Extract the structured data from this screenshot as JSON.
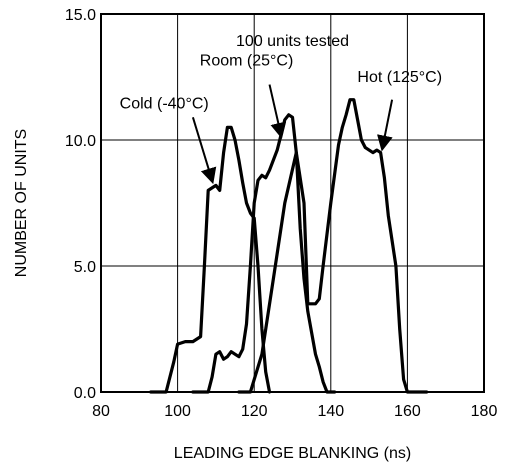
{
  "chart_data": {
    "type": "line",
    "title": "",
    "xlabel": "LEADING EDGE BLANKING (ns)",
    "ylabel": "NUMBER OF UNITS",
    "xlim": [
      80,
      180
    ],
    "ylim": [
      0,
      15
    ],
    "x_ticks": [
      "80",
      "100",
      "120",
      "140",
      "160",
      "180"
    ],
    "y_ticks": [
      "0.0",
      "5.0",
      "10.0",
      "15.0"
    ],
    "grid": true,
    "annotations": [
      {
        "text": "100 units tested"
      }
    ],
    "series": [
      {
        "name": "Cold (-40°C)",
        "points": [
          [
            93,
            0
          ],
          [
            97,
            0
          ],
          [
            99,
            1.2
          ],
          [
            100,
            1.9
          ],
          [
            102,
            2
          ],
          [
            104,
            2
          ],
          [
            106,
            2.2
          ],
          [
            107,
            5
          ],
          [
            108,
            8
          ],
          [
            110,
            8.2
          ],
          [
            111,
            8
          ],
          [
            112,
            9.5
          ],
          [
            113,
            10.5
          ],
          [
            114,
            10.5
          ],
          [
            115,
            10
          ],
          [
            116,
            9.2
          ],
          [
            117,
            8.3
          ],
          [
            118,
            7.5
          ],
          [
            119,
            7.1
          ],
          [
            120,
            6.9
          ],
          [
            121,
            5
          ],
          [
            122,
            2.5
          ],
          [
            123,
            0.8
          ],
          [
            124,
            0
          ]
        ]
      },
      {
        "name": "Room (25°C)",
        "points": [
          [
            104,
            0
          ],
          [
            108,
            0
          ],
          [
            109,
            0.6
          ],
          [
            110,
            1.5
          ],
          [
            111,
            1.6
          ],
          [
            112,
            1.3
          ],
          [
            113,
            1.4
          ],
          [
            114,
            1.6
          ],
          [
            115,
            1.5
          ],
          [
            116,
            1.4
          ],
          [
            117,
            1.7
          ],
          [
            118,
            2.7
          ],
          [
            119,
            5
          ],
          [
            120,
            7.5
          ],
          [
            121,
            8.4
          ],
          [
            122,
            8.6
          ],
          [
            123,
            8.5
          ],
          [
            124,
            8.8
          ],
          [
            126,
            9.6
          ],
          [
            127,
            10.2
          ],
          [
            128,
            10.8
          ],
          [
            129,
            11
          ],
          [
            130,
            10.9
          ],
          [
            131,
            9.5
          ],
          [
            132,
            6.5
          ],
          [
            133,
            4.5
          ],
          [
            134,
            3.2
          ],
          [
            136,
            1.5
          ],
          [
            137,
            1
          ],
          [
            138,
            0.4
          ],
          [
            139,
            0
          ],
          [
            141,
            0
          ]
        ]
      },
      {
        "name": "Hot (125°C)",
        "points": [
          [
            116,
            0
          ],
          [
            119,
            0
          ],
          [
            122,
            1.5
          ],
          [
            125,
            4.5
          ],
          [
            128,
            7.5
          ],
          [
            131,
            9.5
          ],
          [
            133,
            7.5
          ],
          [
            134,
            3.5
          ],
          [
            136,
            3.5
          ],
          [
            137,
            3.7
          ],
          [
            138,
            5
          ],
          [
            140,
            7.5
          ],
          [
            142,
            9.8
          ],
          [
            143,
            10.5
          ],
          [
            144,
            11
          ],
          [
            145,
            11.6
          ],
          [
            146,
            11.6
          ],
          [
            147,
            10.8
          ],
          [
            148,
            10
          ],
          [
            149,
            9.7
          ],
          [
            150,
            9.6
          ],
          [
            151,
            9.5
          ],
          [
            152,
            9.6
          ],
          [
            153,
            9.5
          ],
          [
            154,
            8.5
          ],
          [
            155,
            7
          ],
          [
            156,
            6
          ],
          [
            157,
            5
          ],
          [
            158,
            2.5
          ],
          [
            159,
            0.5
          ],
          [
            160,
            0
          ],
          [
            165,
            0
          ]
        ]
      }
    ]
  }
}
